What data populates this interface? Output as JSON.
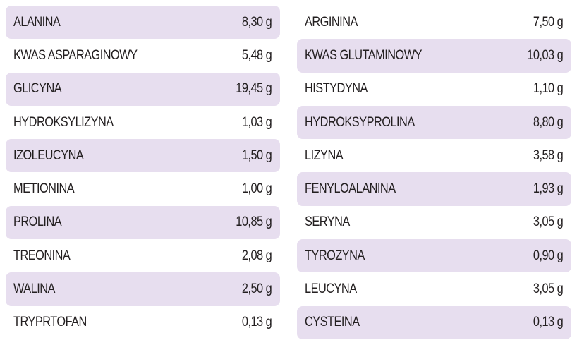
{
  "colors": {
    "row_highlight": "#e7deef",
    "text": "#231f20",
    "background": "#ffffff"
  },
  "left_column": [
    {
      "name": "ALANINA",
      "value": "8,30 g",
      "highlighted": true
    },
    {
      "name": "KWAS ASPARAGINOWY",
      "value": "5,48 g",
      "highlighted": false
    },
    {
      "name": "GLICYNA",
      "value": "19,45 g",
      "highlighted": true
    },
    {
      "name": "HYDROKSYLIZYNA",
      "value": "1,03 g",
      "highlighted": false
    },
    {
      "name": "IZOLEUCYNA",
      "value": "1,50 g",
      "highlighted": true
    },
    {
      "name": "METIONINA",
      "value": "1,00 g",
      "highlighted": false
    },
    {
      "name": "PROLINA",
      "value": "10,85 g",
      "highlighted": true
    },
    {
      "name": "TREONINA",
      "value": "2,08 g",
      "highlighted": false
    },
    {
      "name": "WALINA",
      "value": "2,50 g",
      "highlighted": true
    },
    {
      "name": "TRYPRTOFAN",
      "value": "0,13 g",
      "highlighted": false
    }
  ],
  "right_column": [
    {
      "name": "ARGININA",
      "value": "7,50 g",
      "highlighted": false
    },
    {
      "name": "KWAS GLUTAMINOWY",
      "value": "10,03 g",
      "highlighted": true
    },
    {
      "name": "HISTYDYNA",
      "value": "1,10 g",
      "highlighted": false
    },
    {
      "name": "HYDROKSYPROLINA",
      "value": "8,80 g",
      "highlighted": true
    },
    {
      "name": "LIZYNA",
      "value": "3,58 g",
      "highlighted": false
    },
    {
      "name": "FENYLOALANINA",
      "value": "1,93 g",
      "highlighted": true
    },
    {
      "name": "SERYNA",
      "value": "3,05 g",
      "highlighted": false
    },
    {
      "name": "TYROZYNA",
      "value": "0,90 g",
      "highlighted": true
    },
    {
      "name": "LEUCYNA",
      "value": "3,05 g",
      "highlighted": false
    },
    {
      "name": "CYSTEINA",
      "value": "0,13 g",
      "highlighted": true
    }
  ]
}
